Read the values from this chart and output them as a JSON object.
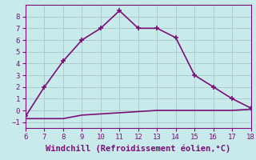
{
  "x_main": [
    6,
    7,
    8,
    9,
    10,
    11,
    12,
    13,
    14,
    15,
    16,
    17,
    18
  ],
  "y_main": [
    -0.5,
    2,
    4.2,
    6,
    7,
    8.5,
    7,
    7,
    6.2,
    3,
    2,
    1,
    0.2
  ],
  "x_flat": [
    6,
    7,
    8,
    9,
    10,
    11,
    12,
    13,
    14,
    15,
    16,
    17,
    18
  ],
  "y_flat": [
    -0.7,
    -0.7,
    -0.7,
    -0.4,
    -0.3,
    -0.2,
    -0.1,
    0.0,
    0.0,
    0.0,
    0.0,
    0.0,
    0.1
  ],
  "line_color": "#7b0e7b",
  "bg_color": "#c8eaea",
  "grid_color": "#a8c8c8",
  "xlabel": "Windchill (Refroidissement éolien,°C)",
  "xlim": [
    6,
    18
  ],
  "ylim": [
    -1.5,
    9.0
  ],
  "xticks": [
    6,
    7,
    8,
    9,
    10,
    11,
    12,
    13,
    14,
    15,
    16,
    17,
    18
  ],
  "yticks": [
    -1,
    0,
    1,
    2,
    3,
    4,
    5,
    6,
    7,
    8
  ],
  "marker": "+",
  "markersize": 5,
  "linewidth": 1.2,
  "xlabel_fontsize": 7.5,
  "tick_fontsize": 6.5,
  "tick_color": "#7b0e7b",
  "label_color": "#7b0e7b"
}
